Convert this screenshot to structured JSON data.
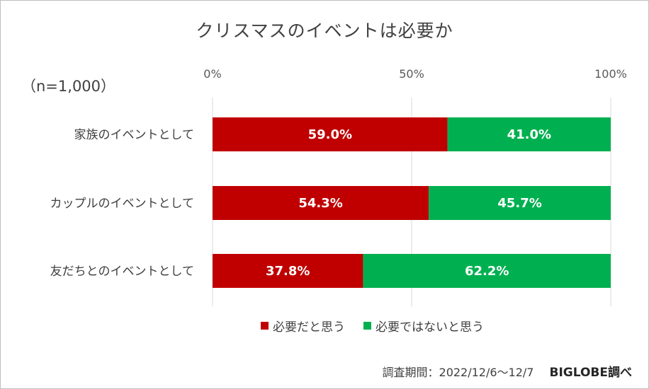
{
  "header": {
    "title": "クリスマスのイベントは必要か",
    "sample": "（n=1,000）"
  },
  "chart_data": {
    "type": "bar",
    "orientation": "horizontal",
    "stacked": true,
    "percent": true,
    "categories": [
      "家族のイベントとして",
      "カップルのイベントとして",
      "友だちとのイベントとして"
    ],
    "series": [
      {
        "name": "必要だと思う",
        "values": [
          59.0,
          54.3,
          37.8
        ],
        "labels": [
          "59.0%",
          "54.3%",
          "37.8%"
        ],
        "color": "#c00000"
      },
      {
        "name": "必要ではないと思う",
        "values": [
          41.0,
          45.7,
          62.2
        ],
        "labels": [
          "41.0%",
          "45.7%",
          "62.2%"
        ],
        "color": "#00b050"
      }
    ],
    "xlim": [
      0,
      100
    ],
    "xticks": [
      0,
      50,
      100
    ],
    "xtick_labels": [
      "0%",
      "50%",
      "100%"
    ],
    "xaxis_position": "top",
    "grid": true,
    "legend": "bottom"
  },
  "footer": {
    "period": "調査期間：2022/12/6～12/7",
    "credit": "BIGLOBE調べ"
  }
}
